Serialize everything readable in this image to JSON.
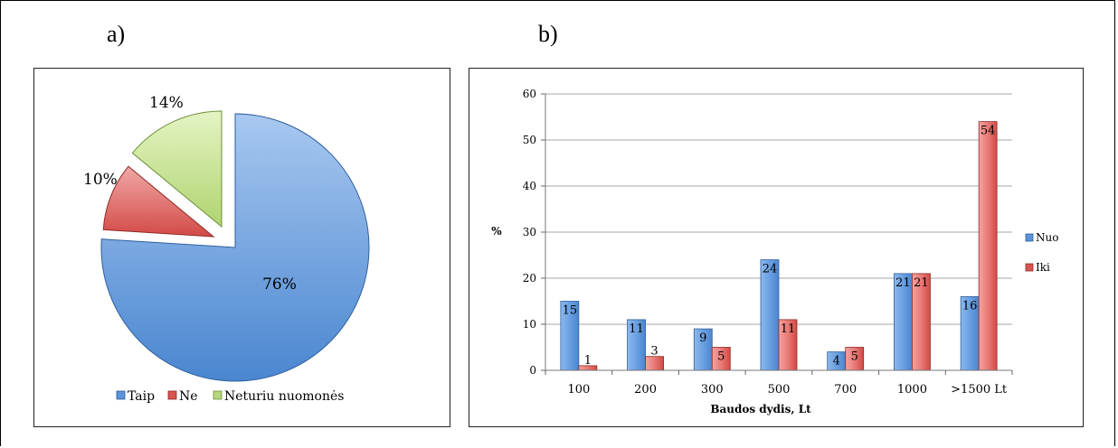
{
  "panel_labels": {
    "a": "a)",
    "b": "b)"
  },
  "chart_data": [
    {
      "type": "pie",
      "title": "",
      "slices": [
        {
          "label": "Taip",
          "value": 76,
          "display": "76%",
          "color": "#5b93d8"
        },
        {
          "label": "Ne",
          "value": 10,
          "display": "10%",
          "color": "#d9534f"
        },
        {
          "label": "Neturiu nuomonės",
          "value": 14,
          "display": "14%",
          "color": "#b5d67a"
        }
      ],
      "exploded": true,
      "legend_position": "bottom"
    },
    {
      "type": "bar",
      "title": "",
      "xlabel": "Baudos dydis, Lt",
      "ylabel": "%",
      "categories": [
        "100",
        "200",
        "300",
        "500",
        "700",
        "1000",
        ">1500 Lt"
      ],
      "series": [
        {
          "name": "Nuo",
          "values": [
            15,
            11,
            9,
            24,
            4,
            21,
            16
          ],
          "color": "#5b93d8"
        },
        {
          "name": "Iki",
          "values": [
            1,
            3,
            5,
            11,
            5,
            21,
            54
          ],
          "color": "#d9534f"
        }
      ],
      "ylim": [
        0,
        60
      ],
      "yticks": [
        0,
        10,
        20,
        30,
        40,
        50,
        60
      ],
      "grid": true,
      "legend_position": "right"
    }
  ]
}
